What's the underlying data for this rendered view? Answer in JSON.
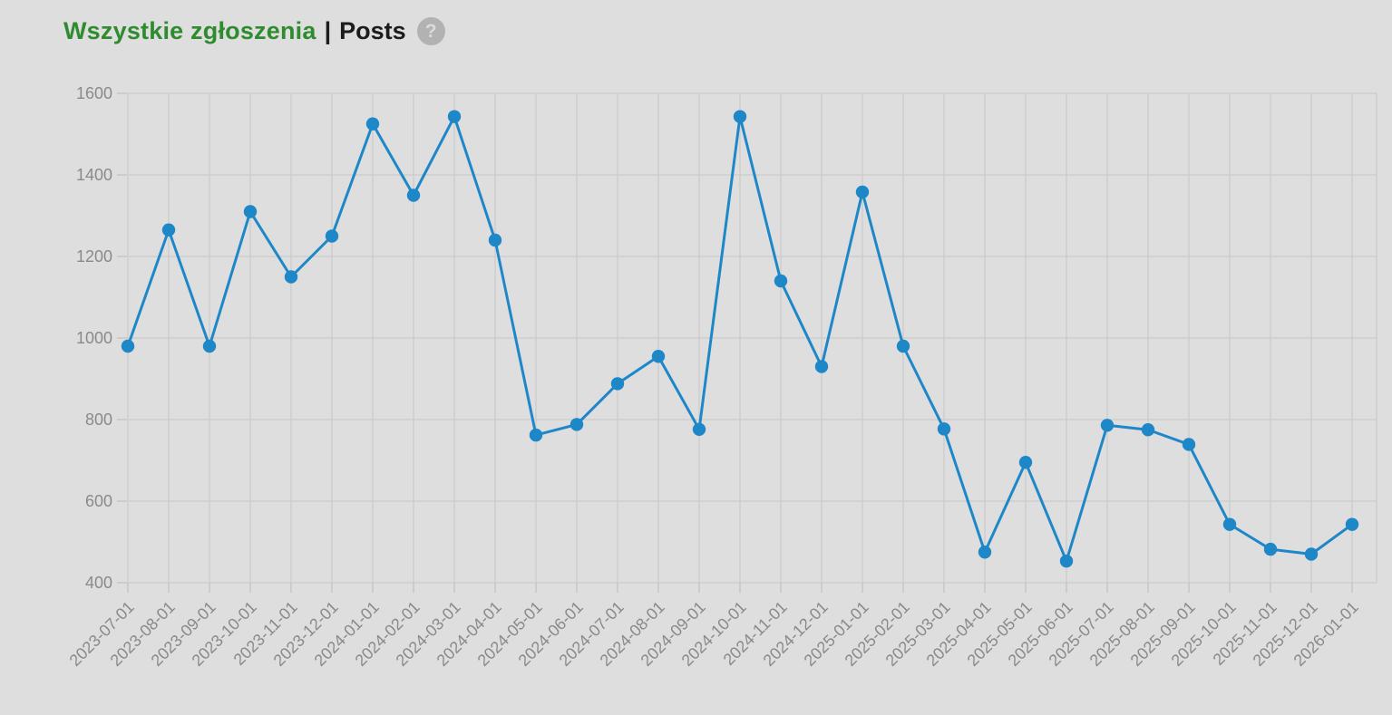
{
  "header": {
    "title_primary": "Wszystkie zgłoszenia",
    "separator": "|",
    "title_secondary": "Posts",
    "help_glyph": "?"
  },
  "colors": {
    "background": "#dedede",
    "gridline": "#c7c7c7",
    "tick_label": "#8a8a8a",
    "line": "#1e87c8",
    "title_green": "#2e8b2e",
    "title_black": "#1c1c1c",
    "help_circle": "#b2b2b2",
    "help_glyph_color": "#dadada"
  },
  "chart_data": {
    "type": "line",
    "title": "Wszystkie zgłoszenia | Posts",
    "xlabel": "",
    "ylabel": "",
    "x": [
      "2023-07-01",
      "2023-08-01",
      "2023-09-01",
      "2023-10-01",
      "2023-11-01",
      "2023-12-01",
      "2024-01-01",
      "2024-02-01",
      "2024-03-01",
      "2024-04-01",
      "2024-05-01",
      "2024-06-01",
      "2024-07-01",
      "2024-08-01",
      "2024-09-01",
      "2024-10-01",
      "2024-11-01",
      "2024-12-01",
      "2025-01-01",
      "2025-02-01",
      "2025-03-01",
      "2025-04-01",
      "2025-05-01",
      "2025-06-01",
      "2025-07-01",
      "2025-08-01",
      "2025-09-01",
      "2025-10-01",
      "2025-11-01",
      "2025-12-01",
      "2026-01-01"
    ],
    "series": [
      {
        "name": "Posts",
        "values": [
          980,
          1265,
          980,
          1310,
          1150,
          1250,
          1525,
          1350,
          1543,
          1240,
          762,
          788,
          888,
          955,
          776,
          1543,
          1140,
          930,
          1358,
          980,
          777,
          475,
          695,
          453,
          786,
          775,
          739,
          543,
          482,
          470,
          543
        ]
      }
    ],
    "ylim": [
      400,
      1600
    ],
    "yticks": [
      400,
      600,
      800,
      1000,
      1200,
      1400,
      1600
    ],
    "ytick_step": 200,
    "grid": true,
    "legend": "none",
    "marker": "circle"
  }
}
